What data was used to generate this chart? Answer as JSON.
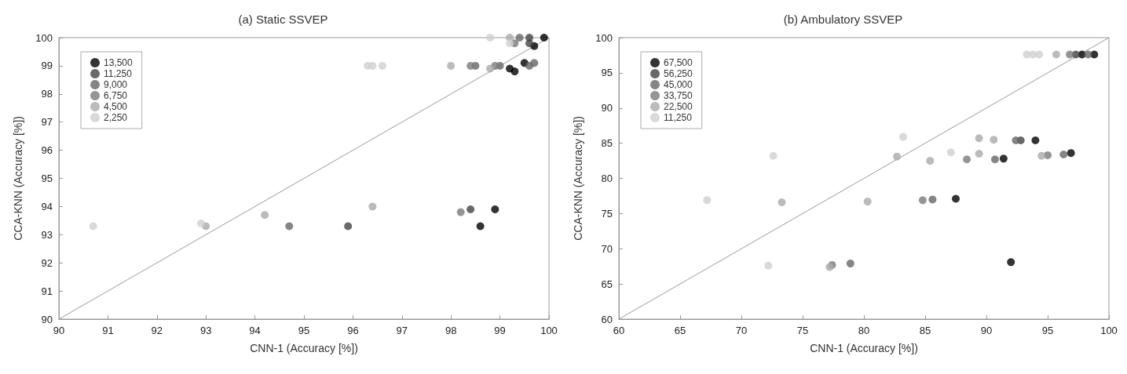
{
  "chart_data": [
    {
      "type": "scatter",
      "title": "(a) Static SSVEP",
      "xlabel": "CNN-1 (Accuracy [%])",
      "ylabel": "CCA-KNN (Accuracy [%])",
      "xlim": [
        90,
        100
      ],
      "ylim": [
        90,
        100
      ],
      "xticks": [
        90,
        91,
        92,
        93,
        94,
        95,
        96,
        97,
        98,
        99,
        100
      ],
      "yticks": [
        90,
        91,
        92,
        93,
        94,
        95,
        96,
        97,
        98,
        99,
        100
      ],
      "grid": false,
      "legend": "top left",
      "marker": "circle",
      "series": [
        {
          "name": "13,500",
          "color": "#000000",
          "x": [
            98.6,
            98.9,
            99.2,
            99.3,
            99.5,
            99.7,
            99.9
          ],
          "values": [
            93.3,
            93.9,
            98.9,
            98.8,
            99.1,
            99.7,
            100
          ]
        },
        {
          "name": "11,250",
          "color": "#444444",
          "x": [
            95.9,
            98.4,
            99.6,
            99.6
          ],
          "values": [
            93.3,
            93.9,
            100,
            99.8
          ]
        },
        {
          "name": "9,000",
          "color": "#666666",
          "x": [
            94.7,
            98.5,
            99.0,
            99.4,
            99.6,
            99.7
          ],
          "values": [
            93.3,
            99.0,
            99.0,
            100,
            99.0,
            99.1
          ]
        },
        {
          "name": "6,750",
          "color": "#7a7a7a",
          "x": [
            98.2,
            98.4,
            98.9,
            99.3
          ],
          "values": [
            93.8,
            99.0,
            99.0,
            99.8
          ]
        },
        {
          "name": "4,500",
          "color": "#aaaaaa",
          "x": [
            93.0,
            94.2,
            96.4,
            98.0,
            98.8,
            99.2
          ],
          "values": [
            93.3,
            93.7,
            94.0,
            99.0,
            98.9,
            100
          ]
        },
        {
          "name": "2,250",
          "color": "#d0d0d0",
          "x": [
            90.7,
            92.9,
            96.3,
            96.4,
            96.6,
            98.8,
            99.2
          ],
          "values": [
            93.3,
            93.4,
            99.0,
            99.0,
            99.0,
            100,
            99.8
          ]
        },
        {
          "type": "line",
          "color": "#999999",
          "marker": "none",
          "x": [
            90,
            100
          ],
          "values": [
            90,
            100
          ]
        }
      ]
    },
    {
      "type": "scatter",
      "title": "(b) Ambulatory SSVEP",
      "xlabel": "CNN-1 (Accuracy [%])",
      "ylabel": "CCA-KNN (Accuracy [%])",
      "xlim": [
        60,
        100
      ],
      "ylim": [
        60,
        100
      ],
      "xticks": [
        60,
        65,
        70,
        75,
        80,
        85,
        90,
        95,
        100
      ],
      "yticks": [
        60,
        65,
        70,
        75,
        80,
        85,
        90,
        95,
        100
      ],
      "grid": false,
      "legend": "top left",
      "marker": "circle",
      "series": [
        {
          "name": "67,500",
          "color": "#000000",
          "x": [
            87.5,
            91.4,
            92.0,
            94.0,
            96.9,
            97.8,
            98.8
          ],
          "values": [
            77.1,
            82.8,
            68.1,
            85.4,
            83.6,
            97.6,
            97.6
          ]
        },
        {
          "name": "56,250",
          "color": "#444444",
          "x": [
            92.8,
            97.3
          ],
          "values": [
            85.4,
            97.6
          ]
        },
        {
          "name": "45,000",
          "color": "#666666",
          "x": [
            78.9,
            85.6,
            90.7,
            92.4,
            96.3,
            98.3
          ],
          "values": [
            67.9,
            77.0,
            82.7,
            85.4,
            83.4,
            97.6
          ]
        },
        {
          "name": "33,750",
          "color": "#7a7a7a",
          "x": [
            77.4,
            84.8,
            88.4,
            95.0,
            96.8
          ],
          "values": [
            67.7,
            76.9,
            82.7,
            83.3,
            97.6
          ]
        },
        {
          "name": "22,500",
          "color": "#aaaaaa",
          "x": [
            73.3,
            77.2,
            80.3,
            82.7,
            85.4,
            89.4,
            89.4,
            90.6,
            94.5,
            95.7
          ],
          "values": [
            76.6,
            67.4,
            76.7,
            83.1,
            82.5,
            85.7,
            83.5,
            85.5,
            83.2,
            97.6
          ]
        },
        {
          "name": "11,250",
          "color": "#d0d0d0",
          "x": [
            67.2,
            72.6,
            72.2,
            83.2,
            87.1,
            93.3,
            93.8,
            94.3
          ],
          "values": [
            76.9,
            83.2,
            67.6,
            85.9,
            83.7,
            97.6,
            97.6,
            97.6
          ]
        },
        {
          "type": "line",
          "color": "#999999",
          "marker": "none",
          "x": [
            60,
            100
          ],
          "values": [
            60,
            100
          ]
        }
      ]
    }
  ]
}
